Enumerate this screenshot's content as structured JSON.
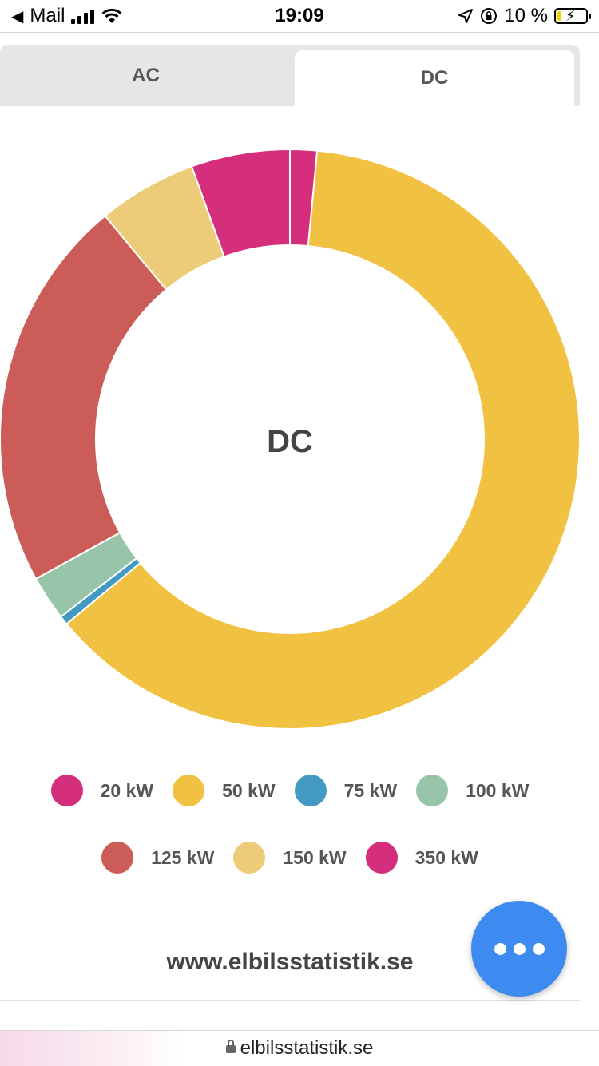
{
  "status_bar": {
    "back_app": "Mail",
    "time": "19:09",
    "battery_percent": "10 %"
  },
  "tabs": [
    {
      "label": "AC",
      "active": false
    },
    {
      "label": "DC",
      "active": true
    }
  ],
  "chart_data": {
    "type": "pie",
    "variant": "donut",
    "center_label": "DC",
    "start_angle_deg": 0,
    "slices": [
      {
        "label": "20 kW",
        "value": 1.5,
        "color": "#d42e7c"
      },
      {
        "label": "50 kW",
        "value": 62.5,
        "color": "#f1c242"
      },
      {
        "label": "75 kW",
        "value": 0.5,
        "color": "#4299c2"
      },
      {
        "label": "100 kW",
        "value": 2.5,
        "color": "#98c4aa"
      },
      {
        "label": "125 kW",
        "value": 22.0,
        "color": "#cc5c58"
      },
      {
        "label": "150 kW",
        "value": 5.5,
        "color": "#eccc78"
      },
      {
        "label": "350 kW",
        "value": 5.5,
        "color": "#d42e7c"
      }
    ],
    "legend_placement": "bottom"
  },
  "footer": {
    "site": "www.elbilsstatistik.se"
  },
  "fab": {
    "icon": "more-dots-icon"
  },
  "browser": {
    "url": "elbilsstatistik.se"
  }
}
